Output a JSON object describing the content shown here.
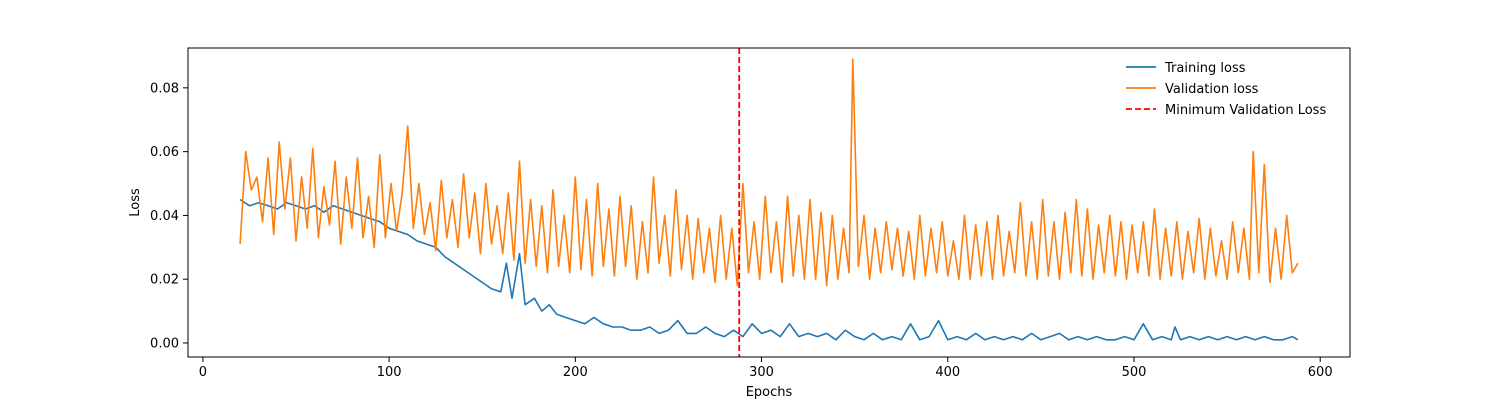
{
  "chart_data": {
    "type": "line",
    "xlabel": "Epochs",
    "ylabel": "Loss",
    "xlim": [
      -8,
      616
    ],
    "ylim": [
      -0.0044,
      0.0925
    ],
    "xticks": [
      0,
      100,
      200,
      300,
      400,
      500,
      600
    ],
    "yticks": [
      0.0,
      0.02,
      0.04,
      0.06,
      0.08
    ],
    "ytick_labels": [
      "0.00",
      "0.02",
      "0.04",
      "0.06",
      "0.08"
    ],
    "grid": false,
    "legend_position": "top-right",
    "series": [
      {
        "name": "Training loss",
        "color": "#1f77b4",
        "points": [
          [
            20,
            0.045
          ],
          [
            25,
            0.043
          ],
          [
            30,
            0.044
          ],
          [
            35,
            0.043
          ],
          [
            40,
            0.042
          ],
          [
            45,
            0.044
          ],
          [
            50,
            0.043
          ],
          [
            55,
            0.042
          ],
          [
            60,
            0.043
          ],
          [
            65,
            0.041
          ],
          [
            70,
            0.043
          ],
          [
            75,
            0.042
          ],
          [
            80,
            0.041
          ],
          [
            85,
            0.04
          ],
          [
            90,
            0.039
          ],
          [
            95,
            0.038
          ],
          [
            100,
            0.036
          ],
          [
            105,
            0.035
          ],
          [
            110,
            0.034
          ],
          [
            115,
            0.032
          ],
          [
            120,
            0.031
          ],
          [
            125,
            0.03
          ],
          [
            130,
            0.027
          ],
          [
            135,
            0.025
          ],
          [
            140,
            0.023
          ],
          [
            145,
            0.021
          ],
          [
            150,
            0.019
          ],
          [
            155,
            0.017
          ],
          [
            160,
            0.016
          ],
          [
            163,
            0.025
          ],
          [
            166,
            0.014
          ],
          [
            170,
            0.028
          ],
          [
            173,
            0.012
          ],
          [
            178,
            0.014
          ],
          [
            182,
            0.01
          ],
          [
            186,
            0.012
          ],
          [
            190,
            0.009
          ],
          [
            195,
            0.008
          ],
          [
            200,
            0.007
          ],
          [
            205,
            0.006
          ],
          [
            210,
            0.008
          ],
          [
            215,
            0.006
          ],
          [
            220,
            0.005
          ],
          [
            225,
            0.005
          ],
          [
            230,
            0.004
          ],
          [
            235,
            0.004
          ],
          [
            240,
            0.005
          ],
          [
            245,
            0.003
          ],
          [
            250,
            0.004
          ],
          [
            255,
            0.007
          ],
          [
            260,
            0.003
          ],
          [
            265,
            0.003
          ],
          [
            270,
            0.005
          ],
          [
            275,
            0.003
          ],
          [
            280,
            0.002
          ],
          [
            285,
            0.004
          ],
          [
            290,
            0.002
          ],
          [
            295,
            0.006
          ],
          [
            300,
            0.003
          ],
          [
            305,
            0.004
          ],
          [
            310,
            0.002
          ],
          [
            315,
            0.006
          ],
          [
            320,
            0.002
          ],
          [
            325,
            0.003
          ],
          [
            330,
            0.002
          ],
          [
            335,
            0.003
          ],
          [
            340,
            0.001
          ],
          [
            345,
            0.004
          ],
          [
            350,
            0.002
          ],
          [
            355,
            0.001
          ],
          [
            360,
            0.003
          ],
          [
            365,
            0.001
          ],
          [
            370,
            0.002
          ],
          [
            375,
            0.001
          ],
          [
            380,
            0.006
          ],
          [
            385,
            0.001
          ],
          [
            390,
            0.002
          ],
          [
            395,
            0.007
          ],
          [
            400,
            0.001
          ],
          [
            405,
            0.002
          ],
          [
            410,
            0.001
          ],
          [
            415,
            0.003
          ],
          [
            420,
            0.001
          ],
          [
            425,
            0.002
          ],
          [
            430,
            0.001
          ],
          [
            435,
            0.002
          ],
          [
            440,
            0.001
          ],
          [
            445,
            0.003
          ],
          [
            450,
            0.001
          ],
          [
            455,
            0.002
          ],
          [
            460,
            0.003
          ],
          [
            465,
            0.001
          ],
          [
            470,
            0.002
          ],
          [
            475,
            0.001
          ],
          [
            480,
            0.002
          ],
          [
            485,
            0.001
          ],
          [
            490,
            0.001
          ],
          [
            495,
            0.002
          ],
          [
            500,
            0.001
          ],
          [
            505,
            0.006
          ],
          [
            510,
            0.001
          ],
          [
            515,
            0.002
          ],
          [
            520,
            0.001
          ],
          [
            522,
            0.005
          ],
          [
            525,
            0.001
          ],
          [
            530,
            0.002
          ],
          [
            535,
            0.001
          ],
          [
            540,
            0.002
          ],
          [
            545,
            0.001
          ],
          [
            550,
            0.002
          ],
          [
            555,
            0.001
          ],
          [
            560,
            0.002
          ],
          [
            565,
            0.001
          ],
          [
            570,
            0.002
          ],
          [
            575,
            0.001
          ],
          [
            580,
            0.001
          ],
          [
            585,
            0.002
          ],
          [
            588,
            0.001
          ]
        ]
      },
      {
        "name": "Validation loss",
        "color": "#ff7f0e",
        "points": [
          [
            20,
            0.031
          ],
          [
            23,
            0.06
          ],
          [
            26,
            0.048
          ],
          [
            29,
            0.052
          ],
          [
            32,
            0.038
          ],
          [
            35,
            0.058
          ],
          [
            38,
            0.034
          ],
          [
            41,
            0.063
          ],
          [
            44,
            0.042
          ],
          [
            47,
            0.058
          ],
          [
            50,
            0.032
          ],
          [
            53,
            0.052
          ],
          [
            56,
            0.036
          ],
          [
            59,
            0.061
          ],
          [
            62,
            0.033
          ],
          [
            65,
            0.049
          ],
          [
            68,
            0.037
          ],
          [
            71,
            0.057
          ],
          [
            74,
            0.031
          ],
          [
            77,
            0.052
          ],
          [
            80,
            0.036
          ],
          [
            83,
            0.058
          ],
          [
            86,
            0.033
          ],
          [
            89,
            0.046
          ],
          [
            92,
            0.03
          ],
          [
            95,
            0.059
          ],
          [
            98,
            0.033
          ],
          [
            101,
            0.05
          ],
          [
            104,
            0.035
          ],
          [
            107,
            0.047
          ],
          [
            110,
            0.068
          ],
          [
            113,
            0.036
          ],
          [
            116,
            0.05
          ],
          [
            119,
            0.034
          ],
          [
            122,
            0.044
          ],
          [
            125,
            0.029
          ],
          [
            128,
            0.051
          ],
          [
            131,
            0.033
          ],
          [
            134,
            0.045
          ],
          [
            137,
            0.03
          ],
          [
            140,
            0.053
          ],
          [
            143,
            0.033
          ],
          [
            146,
            0.047
          ],
          [
            149,
            0.028
          ],
          [
            152,
            0.05
          ],
          [
            155,
            0.031
          ],
          [
            158,
            0.043
          ],
          [
            161,
            0.028
          ],
          [
            164,
            0.047
          ],
          [
            167,
            0.026
          ],
          [
            170,
            0.057
          ],
          [
            173,
            0.025
          ],
          [
            176,
            0.045
          ],
          [
            179,
            0.024
          ],
          [
            182,
            0.043
          ],
          [
            185,
            0.022
          ],
          [
            188,
            0.048
          ],
          [
            191,
            0.024
          ],
          [
            194,
            0.04
          ],
          [
            197,
            0.022
          ],
          [
            200,
            0.052
          ],
          [
            203,
            0.023
          ],
          [
            206,
            0.045
          ],
          [
            209,
            0.021
          ],
          [
            212,
            0.05
          ],
          [
            215,
            0.024
          ],
          [
            218,
            0.042
          ],
          [
            221,
            0.021
          ],
          [
            224,
            0.046
          ],
          [
            227,
            0.024
          ],
          [
            230,
            0.043
          ],
          [
            233,
            0.02
          ],
          [
            236,
            0.038
          ],
          [
            239,
            0.022
          ],
          [
            242,
            0.052
          ],
          [
            245,
            0.025
          ],
          [
            248,
            0.04
          ],
          [
            251,
            0.021
          ],
          [
            254,
            0.048
          ],
          [
            257,
            0.023
          ],
          [
            260,
            0.04
          ],
          [
            263,
            0.02
          ],
          [
            266,
            0.039
          ],
          [
            269,
            0.022
          ],
          [
            272,
            0.036
          ],
          [
            275,
            0.019
          ],
          [
            278,
            0.04
          ],
          [
            281,
            0.02
          ],
          [
            284,
            0.036
          ],
          [
            287,
            0.018
          ],
          [
            290,
            0.05
          ],
          [
            293,
            0.022
          ],
          [
            296,
            0.038
          ],
          [
            299,
            0.02
          ],
          [
            302,
            0.046
          ],
          [
            305,
            0.022
          ],
          [
            308,
            0.038
          ],
          [
            311,
            0.019
          ],
          [
            314,
            0.046
          ],
          [
            317,
            0.021
          ],
          [
            320,
            0.04
          ],
          [
            323,
            0.02
          ],
          [
            326,
            0.045
          ],
          [
            329,
            0.02
          ],
          [
            332,
            0.041
          ],
          [
            335,
            0.018
          ],
          [
            338,
            0.04
          ],
          [
            341,
            0.02
          ],
          [
            344,
            0.036
          ],
          [
            347,
            0.022
          ],
          [
            349,
            0.089
          ],
          [
            352,
            0.024
          ],
          [
            355,
            0.04
          ],
          [
            358,
            0.02
          ],
          [
            361,
            0.036
          ],
          [
            364,
            0.022
          ],
          [
            367,
            0.038
          ],
          [
            370,
            0.023
          ],
          [
            373,
            0.036
          ],
          [
            376,
            0.021
          ],
          [
            379,
            0.035
          ],
          [
            382,
            0.02
          ],
          [
            385,
            0.04
          ],
          [
            388,
            0.021
          ],
          [
            391,
            0.036
          ],
          [
            394,
            0.022
          ],
          [
            397,
            0.038
          ],
          [
            400,
            0.021
          ],
          [
            403,
            0.032
          ],
          [
            406,
            0.02
          ],
          [
            409,
            0.04
          ],
          [
            412,
            0.02
          ],
          [
            415,
            0.037
          ],
          [
            418,
            0.021
          ],
          [
            421,
            0.038
          ],
          [
            424,
            0.02
          ],
          [
            427,
            0.04
          ],
          [
            430,
            0.021
          ],
          [
            433,
            0.035
          ],
          [
            436,
            0.022
          ],
          [
            439,
            0.044
          ],
          [
            442,
            0.021
          ],
          [
            445,
            0.038
          ],
          [
            448,
            0.02
          ],
          [
            451,
            0.045
          ],
          [
            454,
            0.021
          ],
          [
            457,
            0.038
          ],
          [
            460,
            0.02
          ],
          [
            463,
            0.041
          ],
          [
            466,
            0.022
          ],
          [
            469,
            0.045
          ],
          [
            472,
            0.021
          ],
          [
            475,
            0.042
          ],
          [
            478,
            0.02
          ],
          [
            481,
            0.037
          ],
          [
            484,
            0.022
          ],
          [
            487,
            0.04
          ],
          [
            490,
            0.021
          ],
          [
            493,
            0.038
          ],
          [
            496,
            0.02
          ],
          [
            499,
            0.037
          ],
          [
            502,
            0.022
          ],
          [
            505,
            0.038
          ],
          [
            508,
            0.021
          ],
          [
            511,
            0.042
          ],
          [
            514,
            0.02
          ],
          [
            517,
            0.036
          ],
          [
            520,
            0.021
          ],
          [
            523,
            0.038
          ],
          [
            526,
            0.02
          ],
          [
            529,
            0.035
          ],
          [
            532,
            0.022
          ],
          [
            535,
            0.039
          ],
          [
            538,
            0.02
          ],
          [
            541,
            0.036
          ],
          [
            544,
            0.021
          ],
          [
            547,
            0.032
          ],
          [
            550,
            0.02
          ],
          [
            553,
            0.038
          ],
          [
            556,
            0.022
          ],
          [
            559,
            0.036
          ],
          [
            562,
            0.02
          ],
          [
            564,
            0.06
          ],
          [
            567,
            0.022
          ],
          [
            570,
            0.056
          ],
          [
            573,
            0.019
          ],
          [
            576,
            0.036
          ],
          [
            579,
            0.02
          ],
          [
            582,
            0.04
          ],
          [
            585,
            0.022
          ],
          [
            588,
            0.025
          ]
        ]
      }
    ],
    "vline": {
      "name": "Minimum Validation Loss",
      "x": 288,
      "color": "#ff0000"
    }
  }
}
